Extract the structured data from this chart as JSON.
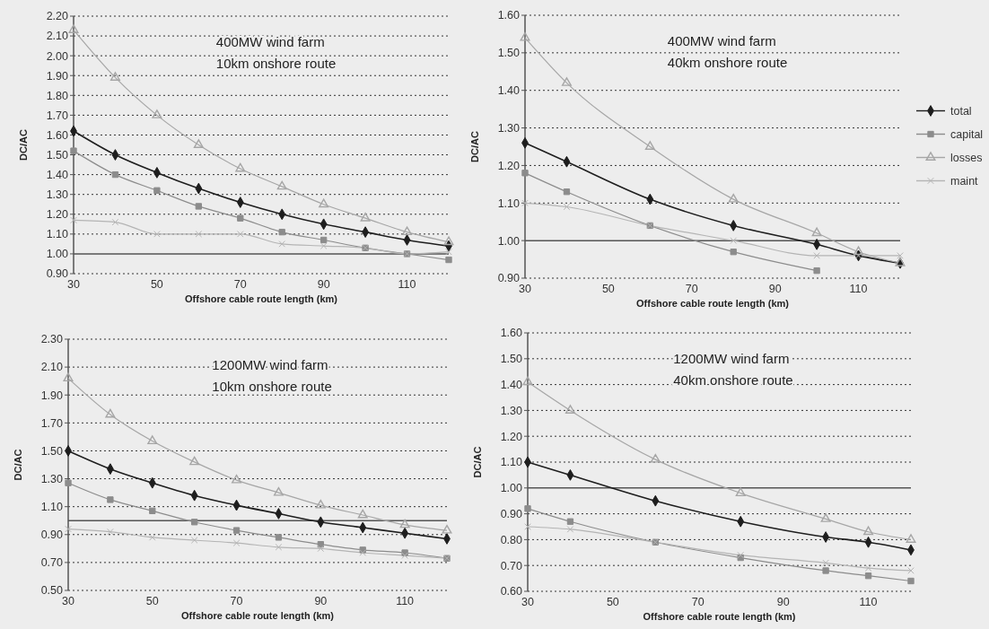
{
  "chart_data": [
    {
      "type": "line",
      "title": "400MW wind farm",
      "subtitle": "10km onshore route",
      "xlabel": "Offshore cable route length (km)",
      "ylabel": "DC/AC",
      "x": [
        30,
        40,
        50,
        60,
        70,
        80,
        90,
        100,
        110,
        120
      ],
      "xlim": [
        30,
        120
      ],
      "xticks": [
        30,
        50,
        70,
        90,
        110
      ],
      "ylim": [
        0.9,
        2.2
      ],
      "yticks": [
        {
          "value": 0.9,
          "label": "0.90"
        },
        {
          "value": 1.0,
          "label": "1.00"
        },
        {
          "value": 1.1,
          "label": "1.10"
        },
        {
          "value": 1.2,
          "label": "1.20"
        },
        {
          "value": 1.3,
          "label": "1.30"
        },
        {
          "value": 1.4,
          "label": "1.40"
        },
        {
          "value": 1.5,
          "label": "1.50"
        },
        {
          "value": 1.6,
          "label": "1.60"
        },
        {
          "value": 1.7,
          "label": "1.70"
        },
        {
          "value": 1.8,
          "label": "1.80"
        },
        {
          "value": 1.9,
          "label": "1.90"
        },
        {
          "value": 2.0,
          "label": "2.00"
        },
        {
          "value": 2.1,
          "label": "2.10"
        },
        {
          "value": 2.2,
          "label": "2.20"
        }
      ],
      "grid": "y",
      "ref_lines": [
        {
          "axis": "y",
          "value": 1.0,
          "color": "#555555",
          "line_style": "solid"
        }
      ],
      "series": [
        {
          "color": "#1e1e1e",
          "marker": "diamond",
          "values": [
            1.62,
            1.5,
            1.41,
            1.33,
            1.26,
            1.2,
            1.15,
            1.11,
            1.07,
            1.04
          ]
        },
        {
          "color": "#8c8c8c",
          "marker": "square",
          "values": [
            1.52,
            1.4,
            1.32,
            1.24,
            1.18,
            1.11,
            1.07,
            1.03,
            1.0,
            0.97
          ]
        },
        {
          "color": "#a6a6a6",
          "marker": "triangle",
          "values": [
            2.13,
            1.89,
            1.7,
            1.55,
            1.43,
            1.34,
            1.25,
            1.18,
            1.11,
            1.06
          ]
        },
        {
          "color": "#b4b4b4",
          "marker": "cross",
          "values": [
            1.17,
            1.16,
            1.1,
            1.1,
            1.1,
            1.05,
            1.04,
            1.03,
            1.0,
            1.01
          ]
        }
      ]
    },
    {
      "type": "line",
      "title": "400MW wind farm",
      "subtitle": "40km onshore route",
      "xlabel": "Offshore cable route length (km)",
      "ylabel": "DC/AC",
      "x": [
        30,
        40,
        60,
        80,
        100,
        110,
        120
      ],
      "xlim": [
        30,
        120
      ],
      "xticks": [
        30,
        50,
        70,
        90,
        110
      ],
      "ylim": [
        0.9,
        1.6
      ],
      "yticks": [
        {
          "value": 0.9,
          "label": "0.90"
        },
        {
          "value": 1.0,
          "label": "1.00"
        },
        {
          "value": 1.1,
          "label": "1.10"
        },
        {
          "value": 1.2,
          "label": "1.20"
        },
        {
          "value": 1.3,
          "label": "1.30"
        },
        {
          "value": 1.4,
          "label": "1.40"
        },
        {
          "value": 1.5,
          "label": "1.50"
        },
        {
          "value": 1.6,
          "label": "1.60"
        }
      ],
      "grid": "y",
      "legend": "right",
      "ref_lines": [
        {
          "axis": "y",
          "value": 1.0,
          "color": "#555555",
          "line_style": "solid"
        }
      ],
      "series": [
        {
          "name": "total",
          "color": "#1e1e1e",
          "marker": "diamond",
          "values": [
            1.26,
            1.21,
            1.11,
            1.04,
            0.99,
            0.96,
            0.94
          ]
        },
        {
          "name": "capital",
          "color": "#8c8c8c",
          "marker": "square",
          "values": [
            1.18,
            1.13,
            1.04,
            0.97,
            0.92,
            null,
            null
          ]
        },
        {
          "name": "losses",
          "color": "#a6a6a6",
          "marker": "triangle",
          "values": [
            1.54,
            1.42,
            1.25,
            1.11,
            1.02,
            0.97,
            0.94
          ]
        },
        {
          "name": "maint",
          "color": "#b4b4b4",
          "marker": "cross",
          "values": [
            1.1,
            1.09,
            1.04,
            1.0,
            0.96,
            0.96,
            0.96
          ]
        }
      ]
    },
    {
      "type": "line",
      "title": "1200MW wind farm",
      "subtitle": "10km onshore route",
      "xlabel": "Offshore cable route length (km)",
      "ylabel": "DC/AC",
      "x": [
        30,
        40,
        50,
        60,
        70,
        80,
        90,
        100,
        110,
        120
      ],
      "xlim": [
        30,
        120
      ],
      "xticks": [
        30,
        50,
        70,
        90,
        110
      ],
      "ylim": [
        0.5,
        2.3
      ],
      "yticks": [
        {
          "value": 0.5,
          "label": "0.50"
        },
        {
          "value": 0.7,
          "label": "0.70"
        },
        {
          "value": 0.9,
          "label": "0.90"
        },
        {
          "value": 1.1,
          "label": "1.10"
        },
        {
          "value": 1.3,
          "label": "1.30"
        },
        {
          "value": 1.5,
          "label": "1.50"
        },
        {
          "value": 1.7,
          "label": "1.70"
        },
        {
          "value": 1.9,
          "label": "1.90"
        },
        {
          "value": 2.1,
          "label": "2.10"
        },
        {
          "value": 2.3,
          "label": "2.30"
        }
      ],
      "grid": "y",
      "ref_lines": [
        {
          "axis": "y",
          "value": 1.0,
          "color": "#555555",
          "line_style": "solid"
        }
      ],
      "series": [
        {
          "color": "#1e1e1e",
          "marker": "diamond",
          "values": [
            1.5,
            1.37,
            1.27,
            1.18,
            1.11,
            1.05,
            0.99,
            0.95,
            0.91,
            0.87
          ]
        },
        {
          "color": "#8c8c8c",
          "marker": "square",
          "values": [
            1.27,
            1.15,
            1.07,
            0.99,
            0.93,
            0.88,
            0.83,
            0.79,
            0.77,
            0.73
          ]
        },
        {
          "color": "#a6a6a6",
          "marker": "triangle",
          "values": [
            2.02,
            1.76,
            1.57,
            1.42,
            1.29,
            1.2,
            1.11,
            1.04,
            0.97,
            0.93
          ]
        },
        {
          "color": "#b4b4b4",
          "marker": "cross",
          "values": [
            0.94,
            0.92,
            0.88,
            0.86,
            0.84,
            0.81,
            0.8,
            0.77,
            0.75,
            0.73
          ]
        }
      ]
    },
    {
      "type": "line",
      "title": "1200MW wind farm",
      "subtitle": "40km onshore route",
      "xlabel": "Offshore cable route length (km)",
      "ylabel": "DC/AC",
      "x": [
        30,
        40,
        60,
        80,
        100,
        110,
        120
      ],
      "xlim": [
        30,
        120
      ],
      "xticks": [
        30,
        50,
        70,
        90,
        110
      ],
      "ylim": [
        0.6,
        1.6
      ],
      "yticks": [
        {
          "value": 0.6,
          "label": "0.60"
        },
        {
          "value": 0.7,
          "label": "0.70"
        },
        {
          "value": 0.8,
          "label": "0.80"
        },
        {
          "value": 0.9,
          "label": "0.90"
        },
        {
          "value": 1.0,
          "label": "1.00"
        },
        {
          "value": 1.1,
          "label": "1.10"
        },
        {
          "value": 1.2,
          "label": "1.20"
        },
        {
          "value": 1.3,
          "label": "1.30"
        },
        {
          "value": 1.4,
          "label": "1.40"
        },
        {
          "value": 1.5,
          "label": "1.50"
        },
        {
          "value": 1.6,
          "label": "1.60"
        }
      ],
      "grid": "y",
      "ref_lines": [
        {
          "axis": "y",
          "value": 1.0,
          "color": "#555555",
          "line_style": "solid"
        }
      ],
      "series": [
        {
          "color": "#1e1e1e",
          "marker": "diamond",
          "values": [
            1.1,
            1.05,
            0.95,
            0.87,
            0.81,
            0.79,
            0.76
          ]
        },
        {
          "color": "#8c8c8c",
          "marker": "square",
          "values": [
            0.92,
            0.87,
            0.79,
            0.73,
            0.68,
            0.66,
            0.64
          ]
        },
        {
          "color": "#a6a6a6",
          "marker": "triangle",
          "values": [
            1.41,
            1.3,
            1.11,
            0.98,
            0.88,
            0.83,
            0.8
          ]
        },
        {
          "color": "#b4b4b4",
          "marker": "cross",
          "values": [
            0.85,
            0.84,
            0.79,
            0.74,
            0.71,
            0.69,
            0.68
          ]
        }
      ]
    }
  ]
}
